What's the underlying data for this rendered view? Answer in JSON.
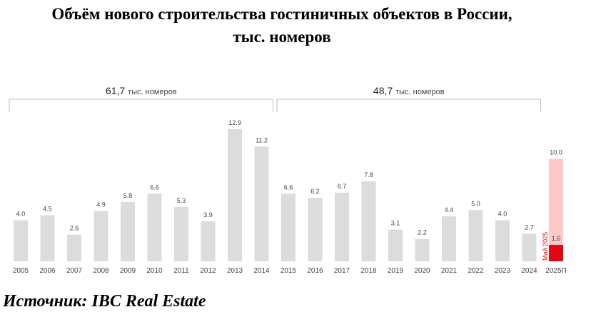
{
  "title_line1": "Объём нового строительства гостиничных объектов в России,",
  "title_line2": "тыс. номеров",
  "source": "Источник: IBC Real Estate",
  "chart_data": {
    "type": "bar",
    "categories": [
      "2005",
      "2006",
      "2007",
      "2008",
      "2009",
      "2010",
      "2011",
      "2012",
      "2013",
      "2014",
      "2015",
      "2016",
      "2017",
      "2018",
      "2019",
      "2020",
      "2021",
      "2022",
      "2023",
      "2024",
      "2025П"
    ],
    "values": [
      4.0,
      4.5,
      2.6,
      4.9,
      5.8,
      6.6,
      5.3,
      3.9,
      12.9,
      11.2,
      6.6,
      6.2,
      6.7,
      7.8,
      3.1,
      2.2,
      4.4,
      5.0,
      4.0,
      2.7,
      10.0
    ],
    "value_labels": [
      "4.0",
      "4.5",
      "2.6",
      "4.9",
      "5.8",
      "6.6",
      "5.3",
      "3.9",
      "12.9",
      "11.2",
      "6.6",
      "6.2",
      "6.7",
      "7.8",
      "3.1",
      "2.2",
      "4.4",
      "5.0",
      "4.0",
      "2.7",
      "10.0"
    ],
    "highlight": {
      "category": "2025П",
      "value": 1.6,
      "value_label": "1,6",
      "label": "Май 2025"
    },
    "groups": [
      {
        "value": "61,7",
        "unit": "тыс. номеров",
        "from": "2005",
        "to": "2014"
      },
      {
        "value": "48,7",
        "unit": "тыс. номеров",
        "from": "2015",
        "to": "2024"
      }
    ],
    "colors": {
      "bar": "#dcdcdc",
      "forecast": "#fcc8c8",
      "highlight": "#e30613",
      "highlight_text": "#e30613"
    },
    "ylim": [
      0,
      13.5
    ],
    "grid": false
  }
}
